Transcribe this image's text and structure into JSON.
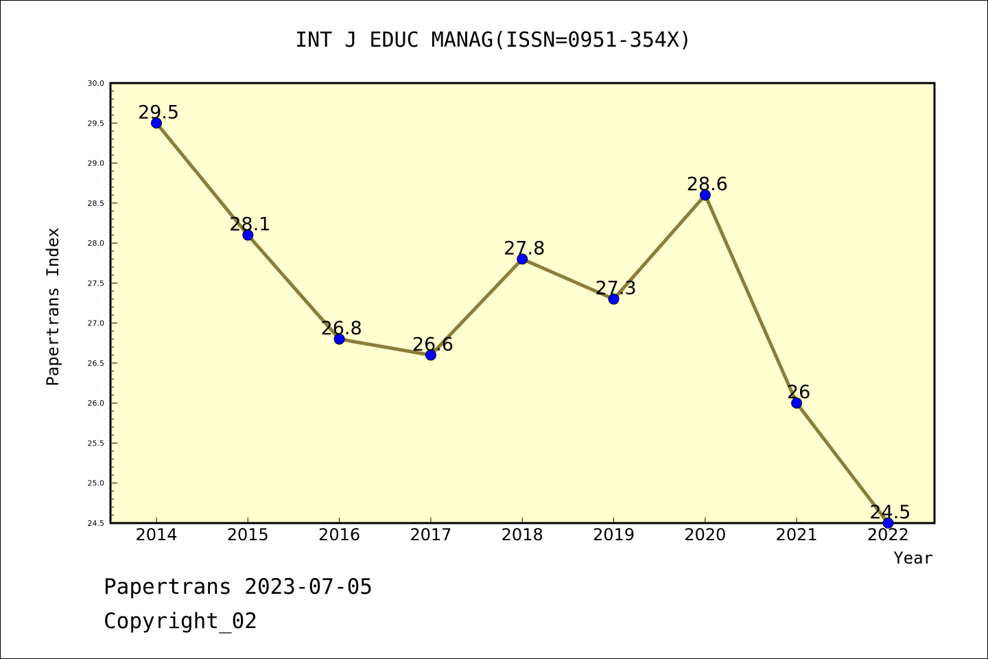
{
  "chart_data": {
    "type": "line",
    "title": "INT J EDUC MANAG(ISSN=0951-354X)",
    "xlabel": "Year",
    "ylabel": "Papertrans Index",
    "categories": [
      "2014",
      "2015",
      "2016",
      "2017",
      "2018",
      "2019",
      "2020",
      "2021",
      "2022"
    ],
    "values": [
      29.5,
      28.1,
      26.8,
      26.6,
      27.8,
      27.3,
      28.6,
      26,
      24.5
    ],
    "data_labels": [
      "29.5",
      "28.1",
      "26.8",
      "26.6",
      "27.8",
      "27.3",
      "28.6",
      "26",
      "24.5"
    ],
    "ylim": [
      24.5,
      30.0
    ],
    "yticks": [
      "24.5",
      "25.0",
      "25.5",
      "26.0",
      "26.5",
      "27.0",
      "27.5",
      "28.0",
      "28.5",
      "29.0",
      "29.5",
      "30.0"
    ],
    "grid": false,
    "legend": "none",
    "colors": {
      "plot_background": "#ffffd0",
      "line": "#8b7d3a",
      "marker": "#0000ff"
    }
  },
  "footer": {
    "line1": "Papertrans 2023-07-05",
    "line2": "Copyright_02"
  }
}
